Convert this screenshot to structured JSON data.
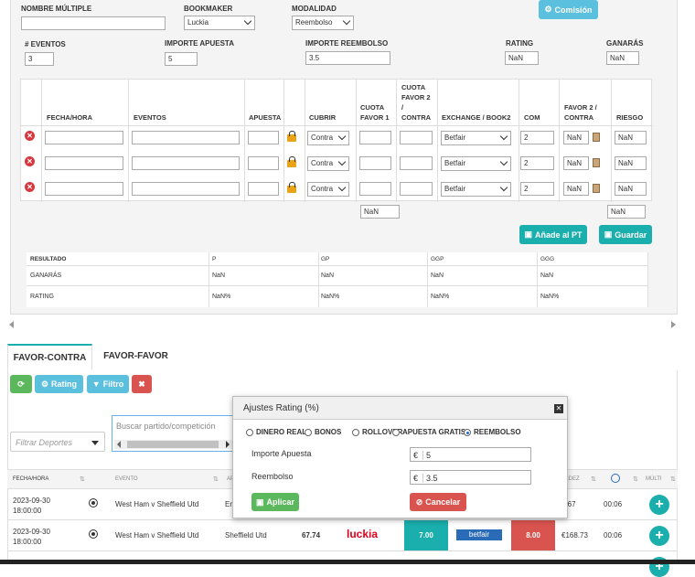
{
  "form": {
    "nombre_multiple_label": "NOMBRE MÚLTIPLE",
    "nombre_multiple_value": "",
    "bookmaker_label": "BOOKMAKER",
    "bookmaker_value": "Luckia",
    "modalidad_label": "MODALIDAD",
    "modalidad_value": "Reembolso",
    "comision_button": "Comisión",
    "eventos_label": "# EVENTOS",
    "eventos_value": "3",
    "importe_apuesta_label": "IMPORTE APUESTA",
    "importe_apuesta_value": "5",
    "importe_reembolso_label": "IMPORTE REEMBOLSO",
    "importe_reembolso_value": "3.5",
    "rating_label": "RATING",
    "rating_value": "NaN",
    "ganaras_label": "GANARÁS",
    "ganaras_value": "NaN"
  },
  "grid": {
    "headers": {
      "fecha": "FECHA/HORA",
      "eventos": "EVENTOS",
      "apuesta": "APUESTA",
      "cubrir": "CUBRIR",
      "cuota1_a": "CUOTA",
      "cuota1_b": "FAVOR 1",
      "cuota2_a": "CUOTA",
      "cuota2_b": "FAVOR 2",
      "cuota2_c": "/",
      "cuota2_d": "CONTRA",
      "exchange": "EXCHANGE / BOOK2",
      "com": "COM",
      "favor2_a": "FAVOR 2 /",
      "favor2_b": "CONTRA",
      "riesgo": "RIESGO"
    },
    "rows": [
      {
        "cubrir": "Contra",
        "exchange": "Betfair",
        "com": "2",
        "favor2": "NaN",
        "riesgo": "NaN"
      },
      {
        "cubrir": "Contra",
        "exchange": "Betfair",
        "com": "2",
        "favor2": "NaN",
        "riesgo": "NaN"
      },
      {
        "cubrir": "Contra",
        "exchange": "Betfair",
        "com": "2",
        "favor2": "NaN",
        "riesgo": "NaN"
      }
    ],
    "total_cuota": "NaN",
    "total_riesgo": "NaN",
    "add_pt_button": "Añade al PT",
    "guardar_button": "Guardar"
  },
  "results": {
    "headers": [
      "RESULTADO",
      "P",
      "GP",
      "GGP",
      "GGG"
    ],
    "ganaras": [
      "GANARÁS",
      "NaN",
      "NaN",
      "NaN",
      "NaN"
    ],
    "rating": [
      "RATING",
      "NaN%",
      "NaN%",
      "NaN%",
      "NaN%"
    ]
  },
  "tabs": [
    "FAVOR-CONTRA",
    "FAVOR-FAVOR"
  ],
  "toolbar": {
    "rating_button": "Rating",
    "filtro_button": "Filtro",
    "deportes_placeholder": "Filtrar Deportes",
    "search_placeholder": "Buscar partido/competición"
  },
  "table": {
    "headers": [
      "FECHA/HORA",
      "EVENTO",
      "AP",
      "IDEZ",
      "MÚLTI"
    ],
    "rows": [
      {
        "fecha": "2023-09-30",
        "hora": "18:00:00",
        "evento": "West Ham v Sheffield Utd",
        "apuesta": "En",
        "ganancia": "3.67",
        "tiempo": "00:06"
      },
      {
        "fecha": "2023-09-30",
        "hora": "18:00:00",
        "evento": "West Ham v Sheffield Utd",
        "apuesta": "Sheffield Utd",
        "rating": "67.74",
        "bookmaker": "luckia",
        "cuota_favor": "7.00",
        "exchange": "betfair",
        "cuota_contra": "8.00",
        "ganancia": "€168.73",
        "tiempo": "00:06"
      }
    ]
  },
  "modal": {
    "title": "Ajustes Rating (%)",
    "options": [
      "DINERO REAL",
      "BONOS",
      "ROLLOVER",
      "APUESTA GRATIS",
      "REEMBOLSO"
    ],
    "selected": "REEMBOLSO",
    "importe_label": "Importe Apuesta",
    "importe_value": "5",
    "reembolso_label": "Reembolso",
    "reembolso_value": "3.5",
    "currency": "€",
    "aplicar_button": "Aplicar",
    "cancelar_button": "Cancelar"
  },
  "colors": {
    "teal": "#1aaeac",
    "blue": "#5bc0de",
    "green": "#5cb85c",
    "red": "#d9534f",
    "luckia_red": "#e2001a",
    "betfair_blue": "#2a6bb8"
  }
}
